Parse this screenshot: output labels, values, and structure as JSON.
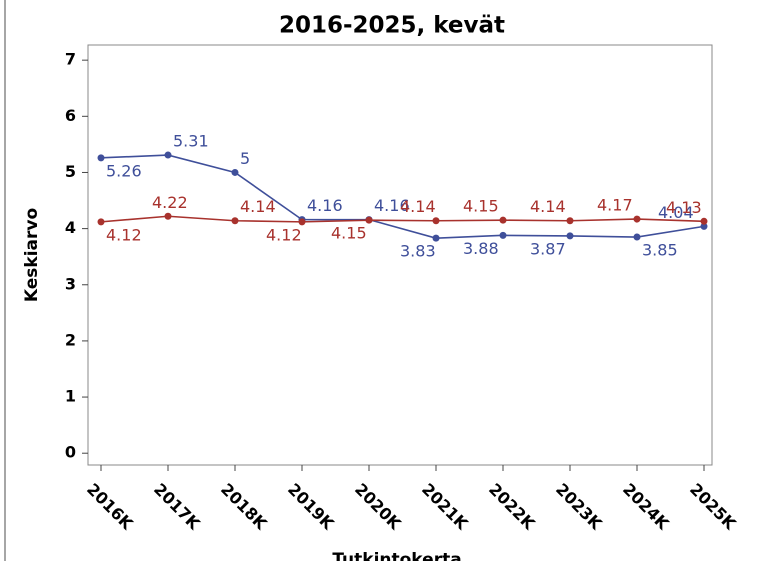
{
  "chart_data": {
    "type": "line",
    "title": "2016-2025, kevät",
    "y_label": "Keskiarvo",
    "x_label": "Tutkintokerta",
    "categories": [
      "2016K",
      "2017K",
      "2018K",
      "2019K",
      "2020K",
      "2021K",
      "2022K",
      "2023K",
      "2024K",
      "2025K"
    ],
    "series": [
      {
        "color": "#3f4f9a",
        "values": [
          5.26,
          5.31,
          5,
          4.16,
          4.16,
          3.83,
          3.88,
          3.87,
          3.85,
          4.04
        ]
      },
      {
        "color": "#a8322d",
        "values": [
          4.12,
          4.22,
          4.14,
          4.12,
          4.15,
          4.14,
          4.15,
          4.14,
          4.17,
          4.13
        ]
      }
    ],
    "ylim": [
      -0.21,
      7.27
    ],
    "yticks": [
      0,
      1,
      2,
      3,
      4,
      5,
      6,
      7
    ],
    "grid": false
  }
}
